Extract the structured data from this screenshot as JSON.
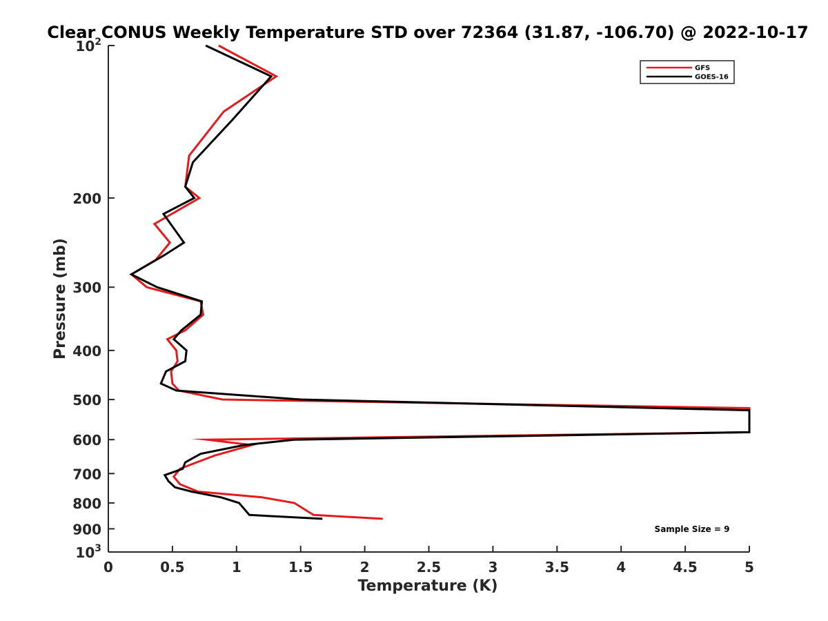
{
  "chart_data": {
    "type": "line",
    "title": "Clear CONUS Weekly Temperature STD over 72364 (31.87, -106.70) @ 2022-10-17",
    "xlabel": "Temperature (K)",
    "ylabel": "Pressure (mb)",
    "xlim": [
      0,
      5
    ],
    "ylim": [
      100,
      1000
    ],
    "y_scale": "log",
    "y_reversed": true,
    "grid": false,
    "legend_position": "top-right",
    "x_ticks": [
      0,
      0.5,
      1,
      1.5,
      2,
      2.5,
      3,
      3.5,
      4,
      4.5,
      5
    ],
    "x_tick_labels": [
      "0",
      "0.5",
      "1",
      "1.5",
      "2",
      "2.5",
      "3",
      "3.5",
      "4",
      "4.5",
      "5"
    ],
    "y_ticks": [
      100,
      200,
      300,
      400,
      500,
      600,
      700,
      800,
      900,
      1000
    ],
    "y_tick_labels": [
      {
        "base": "10",
        "exp": "2"
      },
      {
        "base": "200",
        "exp": ""
      },
      {
        "base": "300",
        "exp": ""
      },
      {
        "base": "400",
        "exp": ""
      },
      {
        "base": "500",
        "exp": ""
      },
      {
        "base": "600",
        "exp": ""
      },
      {
        "base": "700",
        "exp": ""
      },
      {
        "base": "800",
        "exp": ""
      },
      {
        "base": "900",
        "exp": ""
      },
      {
        "base": "10",
        "exp": "3"
      }
    ],
    "series": [
      {
        "name": "GFS",
        "color": "#e41a1c",
        "points": [
          [
            0.86,
            100
          ],
          [
            1.31,
            115
          ],
          [
            0.9,
            135
          ],
          [
            0.63,
            165
          ],
          [
            0.6,
            190
          ],
          [
            0.71,
            200
          ],
          [
            0.36,
            225
          ],
          [
            0.48,
            245
          ],
          [
            0.37,
            265
          ],
          [
            0.18,
            283
          ],
          [
            0.3,
            300
          ],
          [
            0.72,
            320
          ],
          [
            0.74,
            340
          ],
          [
            0.6,
            365
          ],
          [
            0.46,
            380
          ],
          [
            0.53,
            400
          ],
          [
            0.54,
            420
          ],
          [
            0.49,
            440
          ],
          [
            0.5,
            465
          ],
          [
            0.55,
            480
          ],
          [
            0.89,
            500
          ],
          [
            5.0,
            520
          ],
          [
            5.0,
            580
          ],
          [
            0.77,
            600
          ],
          [
            1.12,
            615
          ],
          [
            0.83,
            645
          ],
          [
            0.69,
            665
          ],
          [
            0.56,
            685
          ],
          [
            0.51,
            710
          ],
          [
            0.56,
            735
          ],
          [
            0.7,
            760
          ],
          [
            1.2,
            780
          ],
          [
            1.45,
            800
          ],
          [
            1.6,
            845
          ],
          [
            2.14,
            860
          ]
        ]
      },
      {
        "name": "GOES-16",
        "color": "#000000",
        "points": [
          [
            0.76,
            100
          ],
          [
            1.27,
            115
          ],
          [
            0.97,
            140
          ],
          [
            0.66,
            170
          ],
          [
            0.6,
            190
          ],
          [
            0.67,
            200
          ],
          [
            0.43,
            215
          ],
          [
            0.59,
            245
          ],
          [
            0.43,
            260
          ],
          [
            0.18,
            283
          ],
          [
            0.38,
            300
          ],
          [
            0.73,
            320
          ],
          [
            0.72,
            340
          ],
          [
            0.57,
            365
          ],
          [
            0.51,
            380
          ],
          [
            0.61,
            400
          ],
          [
            0.6,
            420
          ],
          [
            0.45,
            440
          ],
          [
            0.41,
            465
          ],
          [
            0.53,
            480
          ],
          [
            1.5,
            500
          ],
          [
            5.0,
            525
          ],
          [
            5.0,
            580
          ],
          [
            1.45,
            600
          ],
          [
            1.06,
            615
          ],
          [
            0.72,
            640
          ],
          [
            0.6,
            665
          ],
          [
            0.58,
            685
          ],
          [
            0.44,
            705
          ],
          [
            0.47,
            725
          ],
          [
            0.52,
            745
          ],
          [
            0.65,
            760
          ],
          [
            0.88,
            780
          ],
          [
            1.02,
            800
          ],
          [
            1.1,
            845
          ],
          [
            1.67,
            860
          ]
        ]
      }
    ],
    "annotations": [
      "Sample Size = 9"
    ]
  }
}
